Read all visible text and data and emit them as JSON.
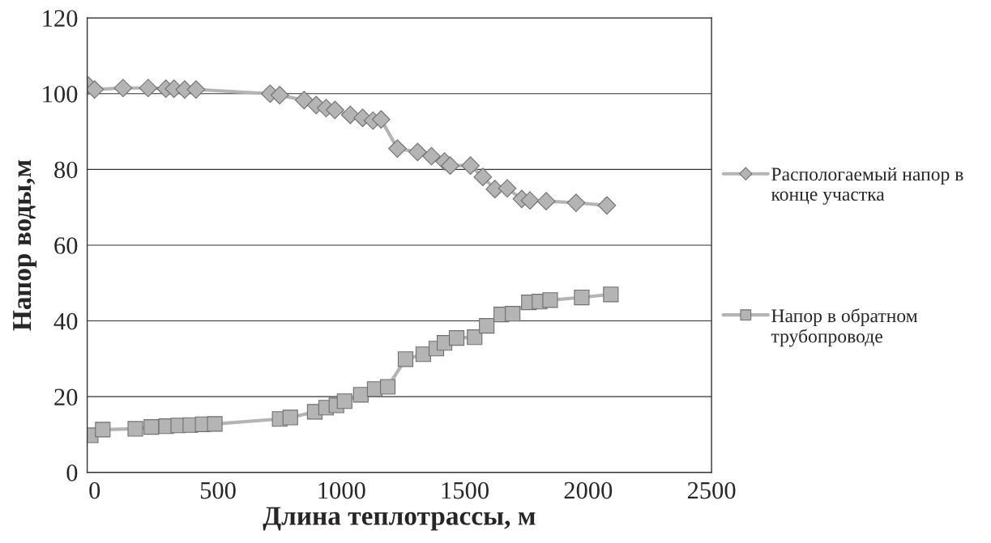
{
  "chart_data": {
    "type": "line",
    "xlabel": "Длина теплотрассы, м",
    "ylabel": "Напор воды,м",
    "xlim": [
      -30,
      2500
    ],
    "xticks": [
      0,
      500,
      1000,
      1500,
      2000,
      2500
    ],
    "ylim": [
      0,
      120
    ],
    "yticks": [
      0,
      20,
      40,
      60,
      80,
      100,
      120
    ],
    "grid": "y",
    "legend": "right",
    "series": [
      {
        "name": "Распологаемый напор в конце участка",
        "color": "#b4b4b4",
        "marker": "diamond",
        "x": [
          -25,
          0,
          115,
          217,
          289,
          322,
          365,
          411,
          711,
          750,
          849,
          898,
          938,
          974,
          1036,
          1086,
          1128,
          1161,
          1227,
          1309,
          1365,
          1418,
          1441,
          1523,
          1573,
          1622,
          1672,
          1731,
          1764,
          1830,
          1951,
          2076
        ],
        "values": [
          102.1,
          101.1,
          101.5,
          101.5,
          101.3,
          101.3,
          101.1,
          101.1,
          100.0,
          99.6,
          98.3,
          97.0,
          96.2,
          95.7,
          94.4,
          93.6,
          92.9,
          93.2,
          85.5,
          84.6,
          83.5,
          82.1,
          81.0,
          81.0,
          78.0,
          74.8,
          75.0,
          72.2,
          71.8,
          71.6,
          71.2,
          70.5
        ]
      },
      {
        "name": "Напор в обратном трубопроводе",
        "color": "#b4b4b4",
        "marker": "square",
        "x": [
          -16,
          33,
          165,
          230,
          290,
          339,
          388,
          438,
          487,
          750,
          793,
          892,
          938,
          980,
          1013,
          1079,
          1135,
          1188,
          1260,
          1332,
          1385,
          1418,
          1467,
          1540,
          1589,
          1648,
          1694,
          1760,
          1803,
          1846,
          1974,
          2092
        ],
        "values": [
          9.8,
          11.3,
          11.5,
          12.0,
          12.2,
          12.4,
          12.5,
          12.7,
          12.8,
          14.1,
          14.5,
          16.0,
          17.1,
          17.7,
          18.8,
          20.5,
          22.0,
          22.6,
          29.9,
          31.2,
          32.7,
          34.2,
          35.5,
          35.7,
          38.7,
          41.7,
          41.9,
          44.9,
          45.1,
          45.5,
          46.2,
          47.0
        ]
      }
    ]
  }
}
